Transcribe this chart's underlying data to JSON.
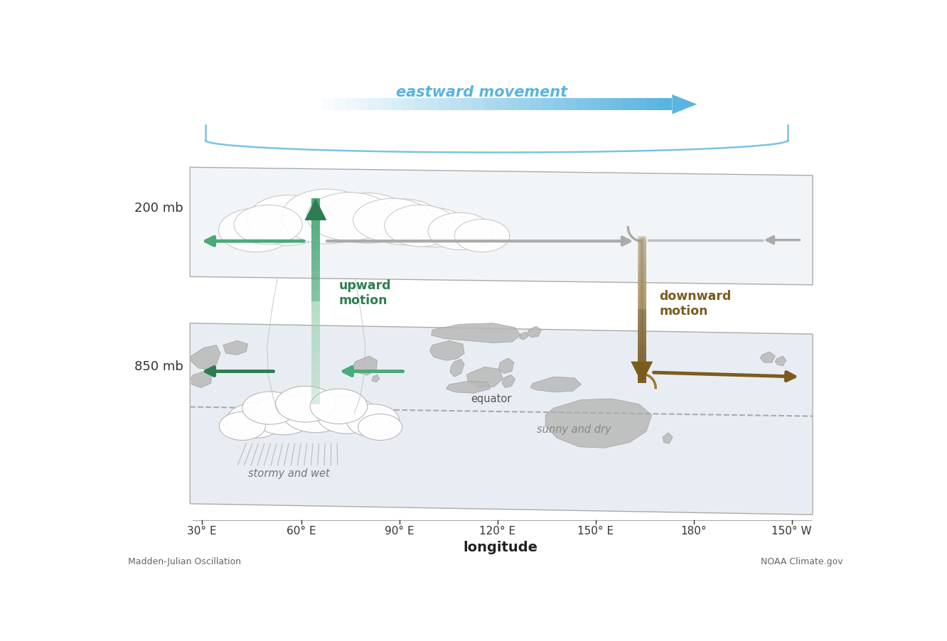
{
  "title": "eastward movement",
  "xlabel": "longitude",
  "x_ticks": [
    "30° E",
    "60° E",
    "90° E",
    "120° E",
    "150° E",
    "180°",
    "150° W"
  ],
  "label_200mb": "200 mb",
  "label_850mb": "850 mb",
  "label_upward": "upward\nmotion",
  "label_downward": "downward\nmotion",
  "label_stormy": "stormy and wet",
  "label_sunny": "sunny and dry",
  "label_equator": "equator",
  "label_mjo": "Madden-Julian Oscillation",
  "label_noaa": "NOAA Climate.gov",
  "bg_color": "#ffffff",
  "green_dark": "#2e7d52",
  "green_mid": "#4aaa78",
  "green_light": "#90cca8",
  "brown_dark": "#7a5c1e",
  "brown_mid": "#9e7830",
  "brown_light": "#c4a060",
  "blue_arrow": "#5ab4e0",
  "blue_light": "#a8d8f0",
  "blue_brace": "#7ac4e0",
  "gray_dark": "#888888",
  "gray_med": "#aaaaaa",
  "gray_light": "#cccccc",
  "plane_top_fill": "#f2f5f8",
  "plane_bot_fill": "#e8edf3",
  "map_fill": "#b8b8b8",
  "map_edge": "#999999"
}
